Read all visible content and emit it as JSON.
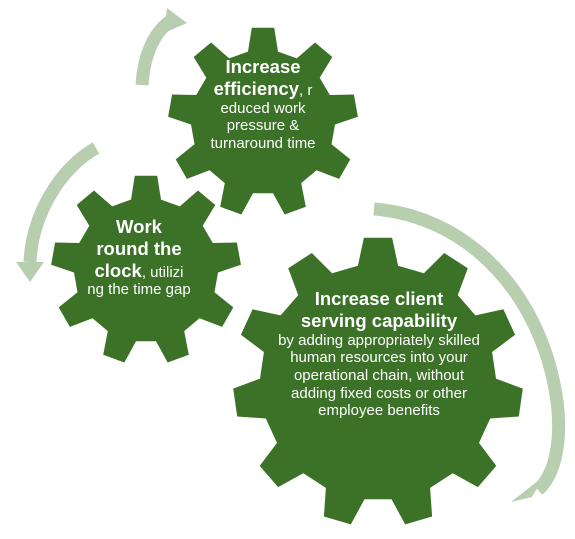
{
  "colors": {
    "gear": "#3b7227",
    "arrow": "#b7cfae",
    "text": "#ffffff"
  },
  "gears": {
    "efficiency": {
      "title_line1": "Increase",
      "title_line2": "efficiency",
      "body_line2": ", r",
      "body_rest": "educed work pressure & turnaround time"
    },
    "clock": {
      "title_line1": "Work",
      "title_line2": "round the",
      "title_line3": "clock",
      "body_line3": ", utilizi",
      "body_rest": "ng the time gap"
    },
    "client": {
      "title_line1": "Increase client",
      "title_line2": "serving capability",
      "body": "by adding appropriately skilled human resources into your operational chain, without adding fixed costs or other employee benefits"
    }
  }
}
